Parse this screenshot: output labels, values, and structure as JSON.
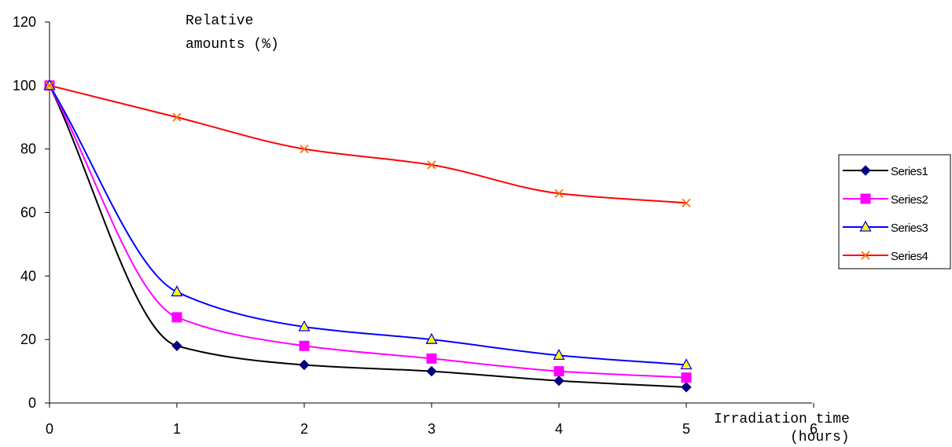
{
  "chart_data": {
    "type": "line",
    "title": "",
    "ylabel_line1": "Relative",
    "ylabel_line2": "amounts (%)",
    "xlabel_line1": "Irradiation time",
    "xlabel_line2": "(hours)",
    "x_ticks": [
      "0",
      "1",
      "2",
      "3",
      "4",
      "5",
      "6"
    ],
    "y_ticks": [
      "0",
      "20",
      "40",
      "60",
      "80",
      "100",
      "120"
    ],
    "xlim": [
      0,
      6
    ],
    "ylim": [
      0,
      120
    ],
    "grid": false,
    "legend_position": "right",
    "x": [
      0,
      1,
      2,
      3,
      4,
      5
    ],
    "series": [
      {
        "name": "Series1",
        "values": [
          100,
          18,
          12,
          10,
          7,
          5
        ],
        "color": "#000000",
        "marker_fill": "#000080",
        "marker": "diamond"
      },
      {
        "name": "Series2",
        "values": [
          100,
          27,
          18,
          14,
          10,
          8
        ],
        "color": "#ff00ff",
        "marker_fill": "#ff00ff",
        "marker": "square"
      },
      {
        "name": "Series3",
        "values": [
          100,
          35,
          24,
          20,
          15,
          12
        ],
        "color": "#0000ff",
        "marker_fill": "#ffff00",
        "marker": "triangle"
      },
      {
        "name": "Series4",
        "values": [
          100,
          90,
          80,
          75,
          66,
          63
        ],
        "color": "#ff0000",
        "marker_fill": "#ff6600",
        "marker": "x"
      }
    ]
  }
}
